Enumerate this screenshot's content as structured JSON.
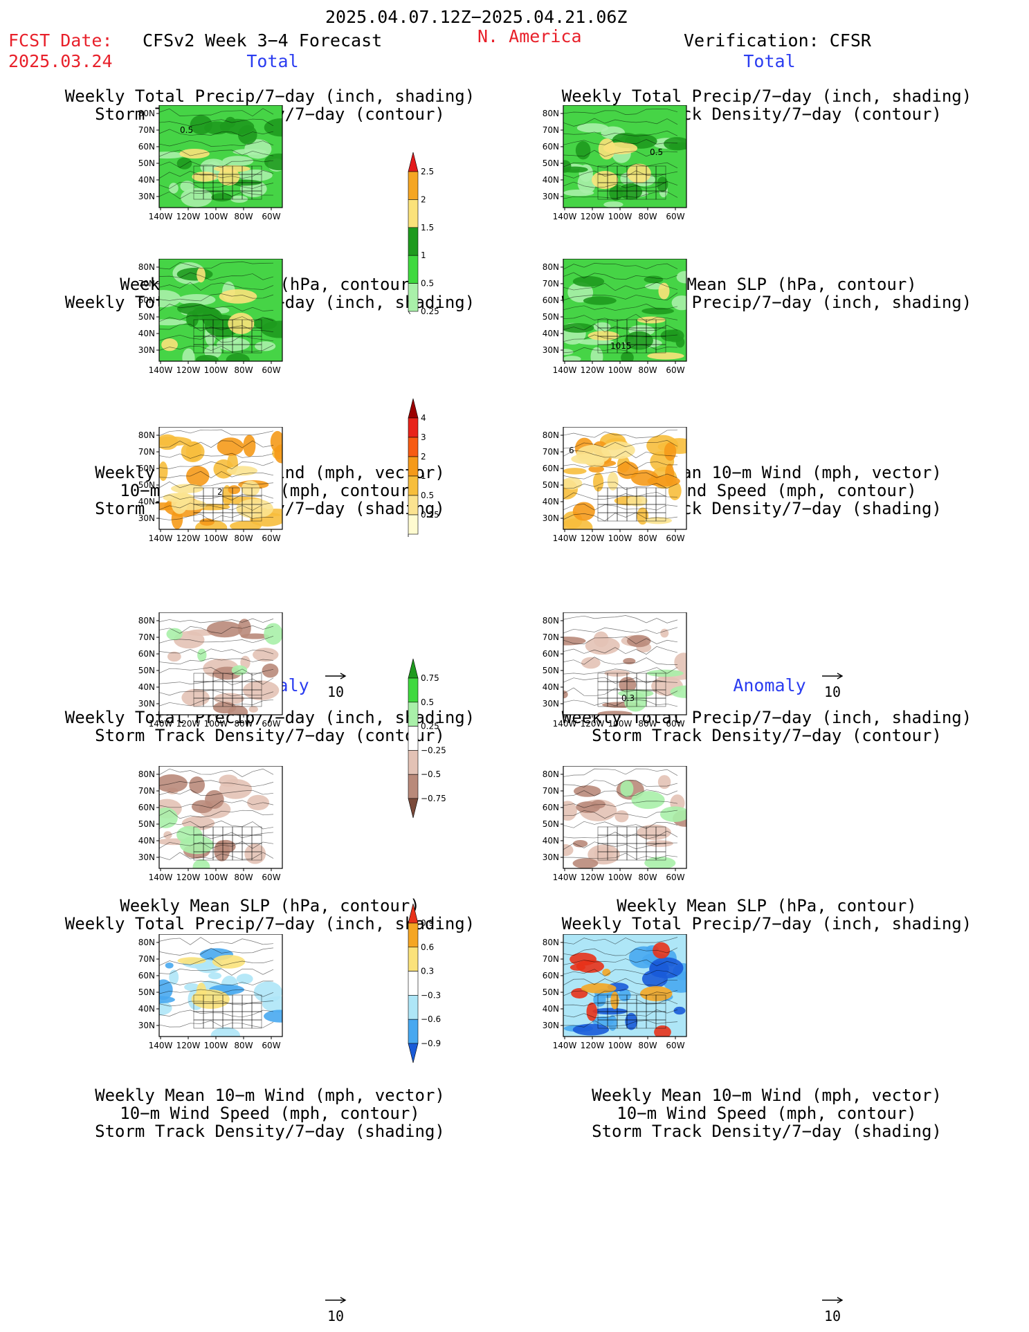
{
  "header": {
    "period": "2025.04.07.12Z−2025.04.21.06Z",
    "fcst_date_label": "FCST Date:",
    "fcst_date": "2025.03.24",
    "product": "CFSv2 Week 3−4 Forecast",
    "region": "N. America",
    "verification": "Verification: CFSR"
  },
  "sections": {
    "total": "Total",
    "anomaly": "Anomaly"
  },
  "titles": {
    "precip_storm": [
      "Weekly Total Precip/7−day (inch, shading)",
      "Storm Track Density/7−day (contour)"
    ],
    "slp_precip": [
      "Weekly Mean SLP (hPa, contour)",
      "Weekly Total Precip/7−day (inch, shading)"
    ],
    "wind_storm": [
      "Weekly Mean 10−m Wind (mph, vector)",
      "10−m Wind Speed (mph, contour)",
      "Storm Track Density/7−day (shading)"
    ]
  },
  "axes": {
    "lat_labels": [
      "80N",
      "70N",
      "60N",
      "50N",
      "40N",
      "30N"
    ],
    "lon_labels": [
      "140W",
      "120W",
      "100W",
      "80W",
      "60W"
    ]
  },
  "vector_scale": "10",
  "colorbars": {
    "precip_total": {
      "labels": [
        "2.5",
        "2",
        "1.5",
        "1",
        "0.5",
        "0.25"
      ],
      "colors": [
        "#e31a1c",
        "#f5a623",
        "#fbe27a",
        "#1e9a1e",
        "#3fd93f",
        "#a9f0a9"
      ]
    },
    "storm_total": {
      "labels": [
        "4",
        "3",
        "2",
        "1",
        "0.5",
        "0.25"
      ],
      "colors": [
        "#9b0000",
        "#e8231a",
        "#f75b12",
        "#f59a1a",
        "#f7be3c",
        "#fbe390",
        "#fffbd0"
      ]
    },
    "precip_anom": {
      "labels": [
        "0.75",
        "0.5",
        "0.25",
        "−0.25",
        "−0.5",
        "−0.75"
      ],
      "colors": [
        "#1e9a1e",
        "#3fd93f",
        "#a9f0a9",
        "#ffffff",
        "#e3c2b5",
        "#b98a7a",
        "#7a4a3a"
      ]
    },
    "storm_anom": {
      "labels": [
        "0.9",
        "0.6",
        "0.3",
        "−0.3",
        "−0.6",
        "−0.9"
      ],
      "colors": [
        "#e8321a",
        "#f5a623",
        "#fbe27a",
        "#ffffff",
        "#aee6f7",
        "#48a8f0",
        "#1a5bd8"
      ]
    }
  },
  "map_contour_labels": {
    "fcst_precip_total": "0.5",
    "ver_precip_total_a": "1",
    "ver_precip_total_b": "0.5",
    "ver_slp_total": "1015",
    "fcst_wind_total_a": "2",
    "fcst_wind_total_b": "4",
    "ver_wind_total_a": "6",
    "ver_wind_total_b": "4",
    "ver_precip_anom": "0.3"
  }
}
